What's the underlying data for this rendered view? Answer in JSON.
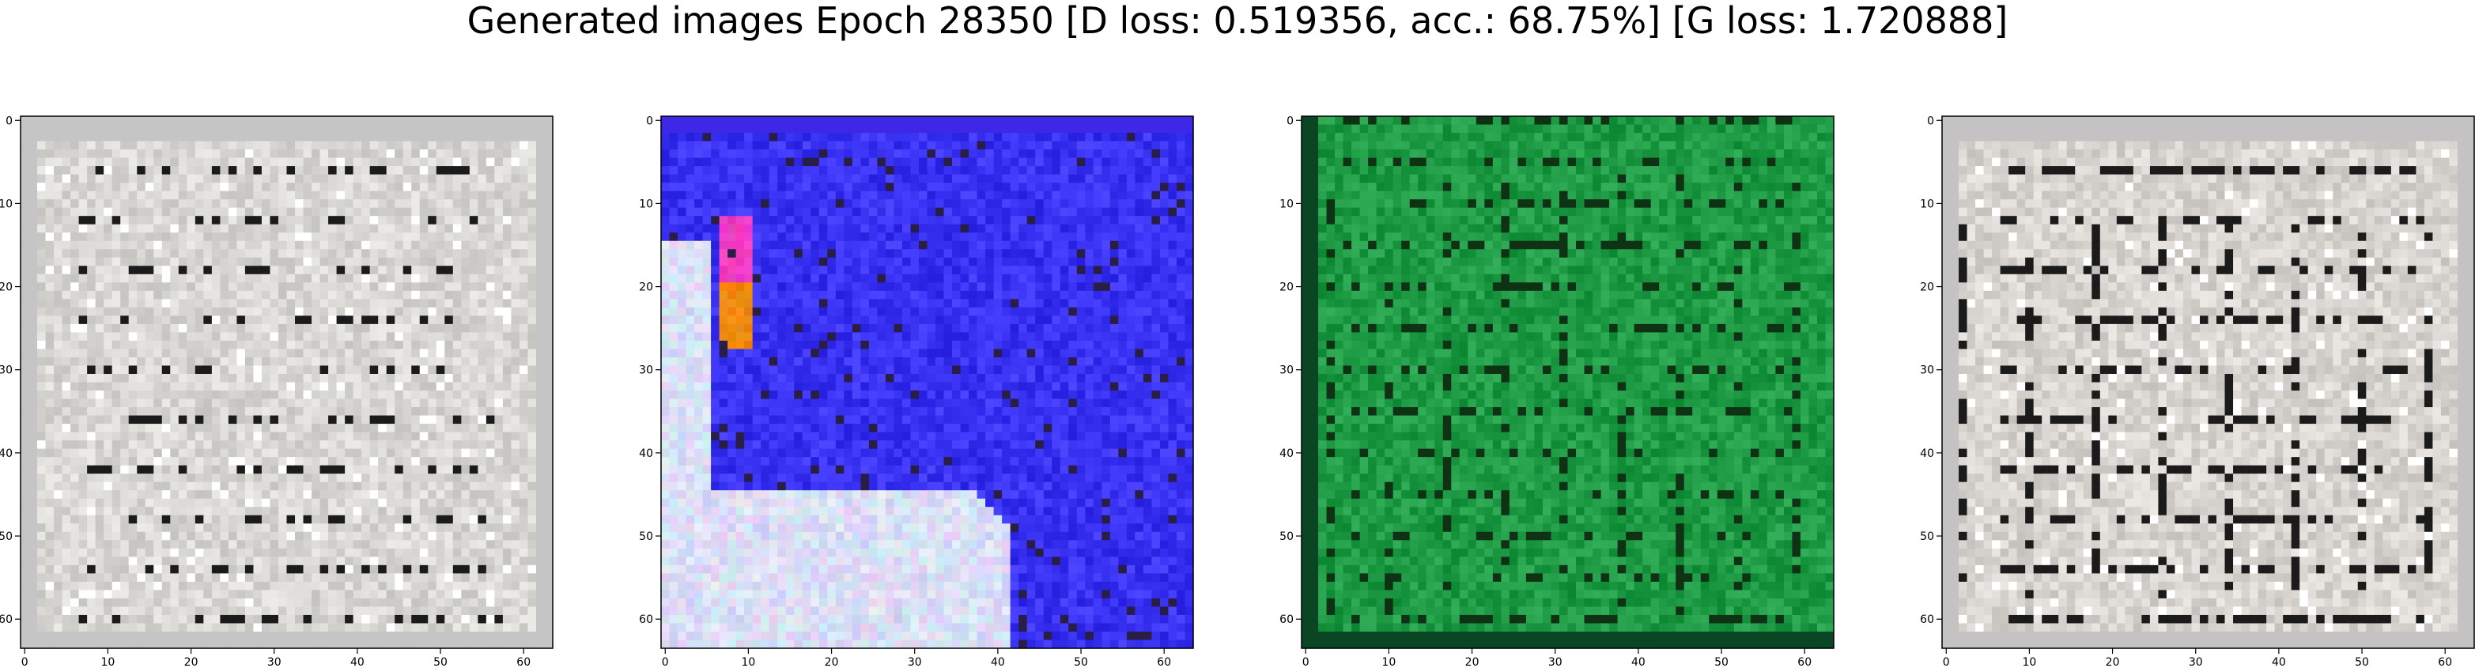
{
  "suptitle": "Generated images Epoch 28350 [D loss: 0.519356, acc.: 68.75%] [G loss: 1.720888]",
  "colors": {
    "panel_1_background": "#d9d7d3",
    "panel_2_background": "#3a32f2",
    "panel_3_background": "#1f9a45",
    "panel_4_background": "#d8d4d0",
    "dark_marks": "#1b1b1b",
    "highlight_orange": "#ff7a1e",
    "highlight_magenta": "#ff2fd3",
    "light_haze": "#eef2ff"
  },
  "chart_data": [
    {
      "type": "heatmap",
      "title": "",
      "xlabel": "",
      "ylabel": "",
      "xlim": [
        0,
        63
      ],
      "ylim": [
        63,
        0
      ],
      "x_ticks": [
        "0",
        "10",
        "20",
        "30",
        "40",
        "50",
        "60"
      ],
      "y_ticks": [
        "0",
        "10",
        "20",
        "30",
        "40",
        "50",
        "60"
      ],
      "grid": false,
      "image": "generated sample 1: light grey texture with dark horizontal strokes"
    },
    {
      "type": "heatmap",
      "title": "",
      "xlabel": "",
      "ylabel": "",
      "xlim": [
        0,
        63
      ],
      "ylim": [
        63,
        0
      ],
      "x_ticks": [
        "0",
        "10",
        "20",
        "30",
        "40",
        "50",
        "60"
      ],
      "y_ticks": [
        "0",
        "10",
        "20",
        "30",
        "40",
        "50",
        "60"
      ],
      "grid": false,
      "image": "generated sample 2: blue field with pale lower-left region and orange/magenta streak"
    },
    {
      "type": "heatmap",
      "title": "",
      "xlabel": "",
      "ylabel": "",
      "xlim": [
        0,
        63
      ],
      "ylim": [
        63,
        0
      ],
      "x_ticks": [
        "0",
        "10",
        "20",
        "30",
        "40",
        "50",
        "60"
      ],
      "y_ticks": [
        "0",
        "10",
        "20",
        "30",
        "40",
        "50",
        "60"
      ],
      "grid": false,
      "image": "generated sample 3: green texture with dark grid-like strokes"
    },
    {
      "type": "heatmap",
      "title": "",
      "xlabel": "",
      "ylabel": "",
      "xlim": [
        0,
        63
      ],
      "ylim": [
        63,
        0
      ],
      "x_ticks": [
        "0",
        "10",
        "20",
        "30",
        "40",
        "50",
        "60"
      ],
      "y_ticks": [
        "0",
        "10",
        "20",
        "30",
        "40",
        "50",
        "60"
      ],
      "grid": false,
      "image": "generated sample 4: light grey texture with dense dark strokes"
    }
  ]
}
